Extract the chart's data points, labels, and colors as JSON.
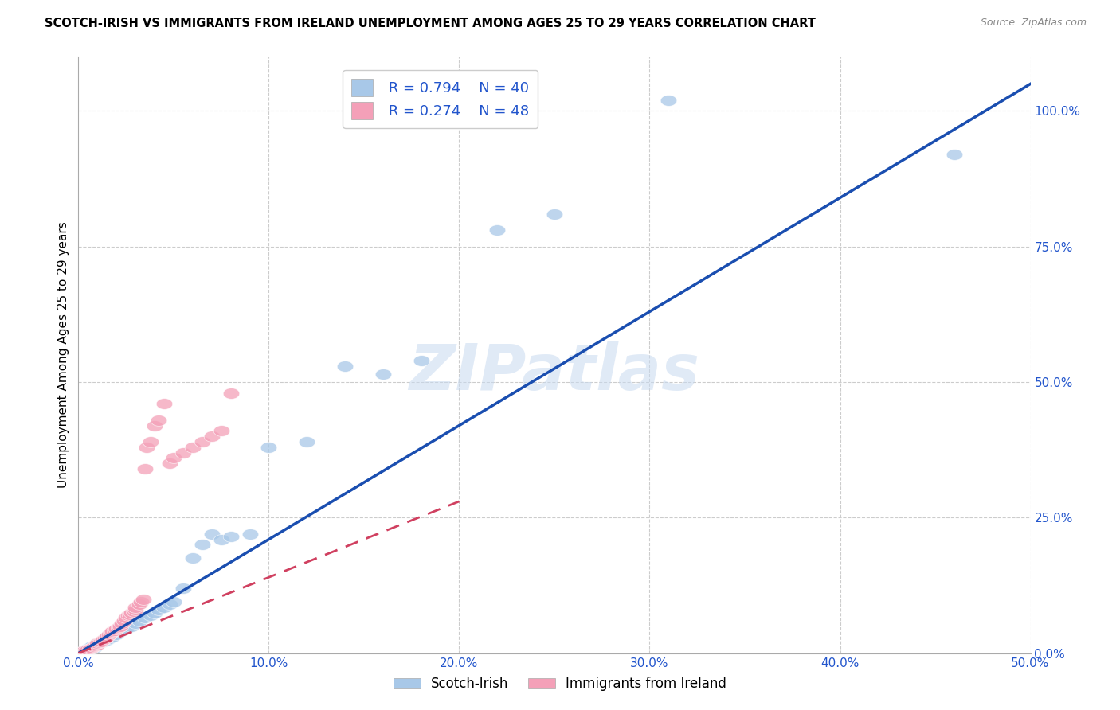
{
  "title": "SCOTCH-IRISH VS IMMIGRANTS FROM IRELAND UNEMPLOYMENT AMONG AGES 25 TO 29 YEARS CORRELATION CHART",
  "source": "Source: ZipAtlas.com",
  "ylabel": "Unemployment Among Ages 25 to 29 years",
  "xlim": [
    0,
    0.5
  ],
  "ylim": [
    0,
    1.1
  ],
  "xticks": [
    0.0,
    0.1,
    0.2,
    0.3,
    0.4,
    0.5
  ],
  "yticks": [
    0.0,
    0.25,
    0.5,
    0.75,
    1.0
  ],
  "xticklabels": [
    "0.0%",
    "10.0%",
    "20.0%",
    "30.0%",
    "40.0%",
    "50.0%"
  ],
  "yticklabels": [
    "0.0%",
    "25.0%",
    "50.0%",
    "75.0%",
    "100.0%"
  ],
  "blue_color": "#a8c8e8",
  "pink_color": "#f4a0b8",
  "blue_line_color": "#1a4eb0",
  "pink_line_color": "#d04060",
  "pink_dash_color": "#e8a0b0",
  "grid_color": "#cccccc",
  "watermark": "ZIPatlas",
  "legend1_r": "0.794",
  "legend1_n": "40",
  "legend2_r": "0.274",
  "legend2_n": "48",
  "blue_scatter_x": [
    0.003,
    0.005,
    0.007,
    0.008,
    0.009,
    0.01,
    0.012,
    0.013,
    0.015,
    0.016,
    0.018,
    0.02,
    0.022,
    0.025,
    0.028,
    0.03,
    0.032,
    0.035,
    0.038,
    0.04,
    0.042,
    0.045,
    0.048,
    0.05,
    0.055,
    0.06,
    0.065,
    0.07,
    0.075,
    0.08,
    0.09,
    0.1,
    0.12,
    0.14,
    0.16,
    0.18,
    0.22,
    0.25,
    0.31,
    0.46
  ],
  "blue_scatter_y": [
    0.005,
    0.008,
    0.012,
    0.01,
    0.015,
    0.018,
    0.02,
    0.022,
    0.025,
    0.028,
    0.03,
    0.035,
    0.04,
    0.045,
    0.05,
    0.055,
    0.06,
    0.065,
    0.07,
    0.075,
    0.08,
    0.085,
    0.09,
    0.095,
    0.12,
    0.175,
    0.2,
    0.22,
    0.21,
    0.215,
    0.22,
    0.38,
    0.39,
    0.53,
    0.515,
    0.54,
    0.78,
    0.81,
    1.02,
    0.92
  ],
  "pink_scatter_x": [
    0.002,
    0.003,
    0.004,
    0.005,
    0.006,
    0.007,
    0.008,
    0.009,
    0.01,
    0.01,
    0.011,
    0.012,
    0.013,
    0.014,
    0.015,
    0.016,
    0.017,
    0.018,
    0.019,
    0.02,
    0.021,
    0.022,
    0.023,
    0.024,
    0.025,
    0.026,
    0.027,
    0.028,
    0.029,
    0.03,
    0.03,
    0.032,
    0.033,
    0.034,
    0.035,
    0.036,
    0.038,
    0.04,
    0.042,
    0.045,
    0.048,
    0.05,
    0.055,
    0.06,
    0.065,
    0.07,
    0.075,
    0.08
  ],
  "pink_scatter_y": [
    0.003,
    0.005,
    0.006,
    0.007,
    0.008,
    0.01,
    0.012,
    0.014,
    0.016,
    0.018,
    0.02,
    0.022,
    0.025,
    0.028,
    0.03,
    0.035,
    0.038,
    0.04,
    0.042,
    0.045,
    0.048,
    0.05,
    0.055,
    0.06,
    0.065,
    0.07,
    0.072,
    0.075,
    0.078,
    0.08,
    0.085,
    0.09,
    0.095,
    0.1,
    0.34,
    0.38,
    0.39,
    0.42,
    0.43,
    0.46,
    0.35,
    0.36,
    0.37,
    0.38,
    0.39,
    0.4,
    0.41,
    0.48
  ],
  "blue_line_x0": 0.0,
  "blue_line_y0": 0.0,
  "blue_line_x1": 0.5,
  "blue_line_y1": 1.05,
  "pink_line_x0": 0.0,
  "pink_line_y0": 0.0,
  "pink_line_x1": 0.2,
  "pink_line_y1": 0.28
}
